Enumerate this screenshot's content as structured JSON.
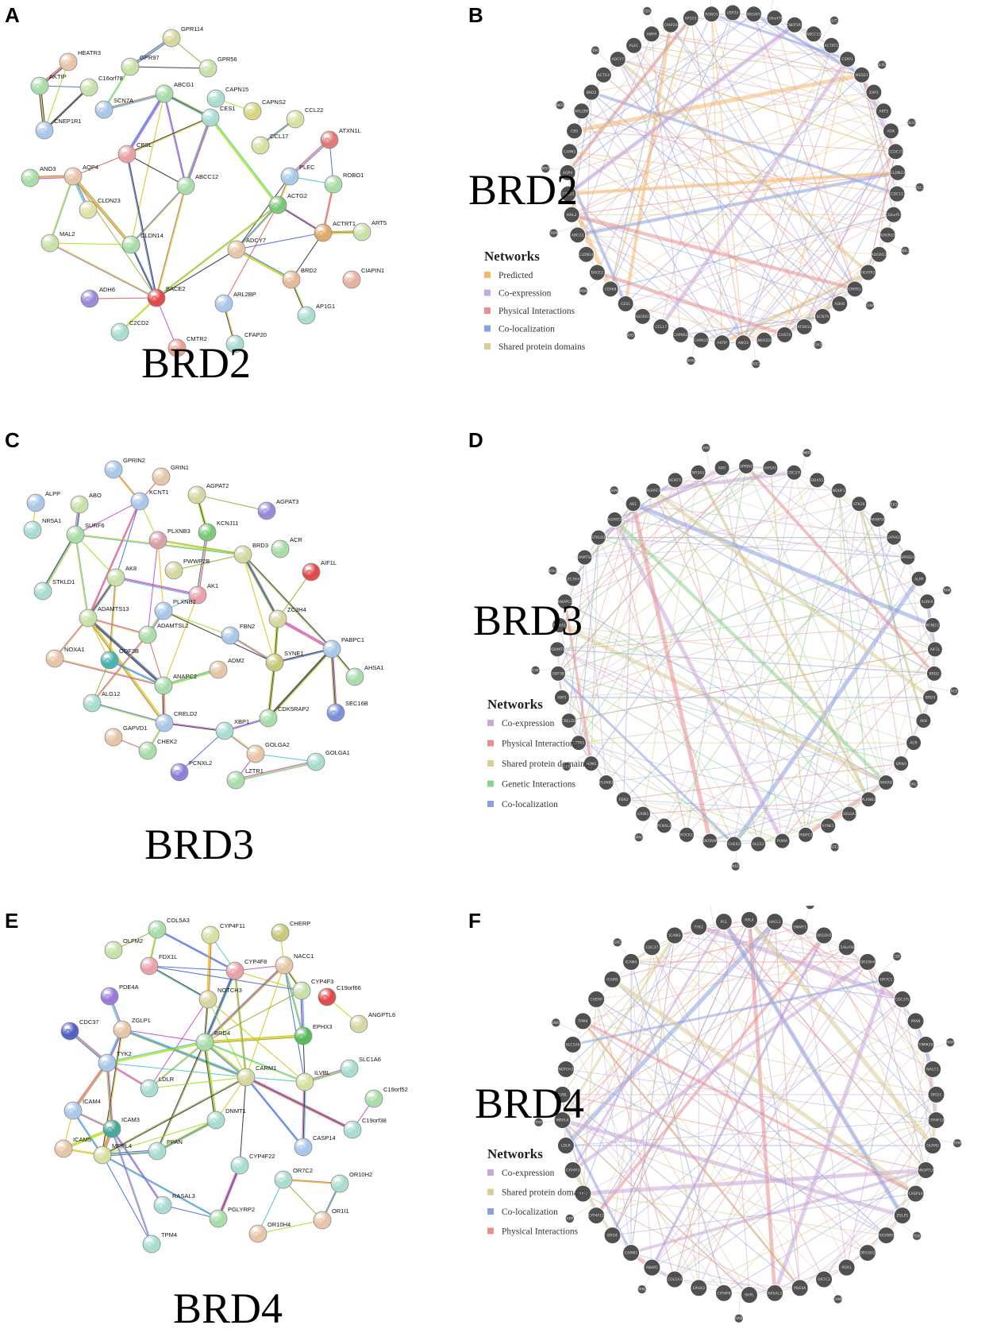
{
  "panels": [
    {
      "id": "A",
      "label": "A",
      "kind": "string",
      "title": "BRD2",
      "nodes": [
        {
          "name": "GPR114",
          "c": "#d6d6a0"
        },
        {
          "name": "HEATR3",
          "c": "#e6c4a6"
        },
        {
          "name": "GPR97",
          "c": "#c8e0a8"
        },
        {
          "name": "GPR56",
          "c": "#c8e0a8"
        },
        {
          "name": "AKTIP",
          "c": "#a8dca8"
        },
        {
          "name": "C16orf78",
          "c": "#c8e0a8"
        },
        {
          "name": "SCN7A",
          "c": "#a9c7e8"
        },
        {
          "name": "ABCG1",
          "c": "#a8dca8"
        },
        {
          "name": "CNEP1R1",
          "c": "#a9c7e8"
        },
        {
          "name": "CAPN15",
          "c": "#a8dcd0"
        },
        {
          "name": "CAPNS2",
          "c": "#d6d680"
        },
        {
          "name": "CCL22",
          "c": "#d6e0a0"
        },
        {
          "name": "CCL17",
          "c": "#d6e0a0"
        },
        {
          "name": "CBSL",
          "c": "#e8a0a0"
        },
        {
          "name": "CES1",
          "c": "#a8dcd0"
        },
        {
          "name": "ATXN1L",
          "c": "#e07878"
        },
        {
          "name": "ANO3",
          "c": "#a8dca8"
        },
        {
          "name": "AQP4",
          "c": "#e6c4a6"
        },
        {
          "name": "PLEC",
          "c": "#a9c7e8"
        },
        {
          "name": "ROBO1",
          "c": "#a8dca8"
        },
        {
          "name": "CLDN23",
          "c": "#e0e0a8"
        },
        {
          "name": "ABCC12",
          "c": "#a8dca8"
        },
        {
          "name": "ACTG2",
          "c": "#78c878"
        },
        {
          "name": "CLDN14",
          "c": "#a8dca8"
        },
        {
          "name": "MAL2",
          "c": "#c8e0a8"
        },
        {
          "name": "ACTRT1",
          "c": "#e0a868"
        },
        {
          "name": "ART5",
          "c": "#c8e0a8"
        },
        {
          "name": "ADCY7",
          "c": "#e6c4a6"
        },
        {
          "name": "CIAPIN1",
          "c": "#e8b0a0"
        },
        {
          "name": "BRD2",
          "c": "#e6b898"
        },
        {
          "name": "ARL2BP",
          "c": "#a9c7e8"
        },
        {
          "name": "ADH6",
          "c": "#9a88d8"
        },
        {
          "name": "BACE2",
          "c": "#e04848"
        },
        {
          "name": "AP1G1",
          "c": "#a8dcd0"
        },
        {
          "name": "C2CD2",
          "c": "#a8dcd0"
        },
        {
          "name": "CFAP20",
          "c": "#a8dcd0"
        },
        {
          "name": "CMTR2",
          "c": "#e8a090"
        }
      ]
    },
    {
      "id": "B",
      "label": "B",
      "kind": "circle",
      "title": "BRD2",
      "legend_title": "Networks",
      "legend": [
        {
          "name": "Predicted",
          "c": "#f4b870"
        },
        {
          "name": "Co-expression",
          "c": "#c8a8d8"
        },
        {
          "name": "Physical Interactions",
          "c": "#e89090"
        },
        {
          "name": "Co-localization",
          "c": "#8aa0e0"
        },
        {
          "name": "Shared protein domains",
          "c": "#d8cc98"
        }
      ],
      "nodes": [
        "USP33",
        "SRGAP1",
        "C16orf78",
        "CNEP1R1",
        "ABCC12",
        "ACTRT1",
        "CSPP1",
        "MED21",
        "ZAP1",
        "ART5",
        "AGK",
        "CCDC71",
        "CLDN23",
        "CCDC113",
        "C16orf57",
        "ADGRG5",
        "ADGRG3",
        "HEATR3",
        "CMTR2",
        "ADH6",
        "SCN7A",
        "ATXN1L",
        "CHST4",
        "ANKRD20",
        "ANO3",
        "AKTIP",
        "CAPN15",
        "CAPNS2",
        "CCL17",
        "ADGRG1",
        "CES1",
        "CEP68",
        "BACE2",
        "CLDN14",
        "ABCG1",
        "MAL2",
        "CCL22",
        "AQP4",
        "CAPN1",
        "CBS",
        "ARL2BP",
        "BRD2",
        "ACTG2",
        "ADCY7",
        "PLEC",
        "AMFR",
        "CFAP20",
        "AP1G1",
        "ROBO1"
      ],
      "satellites": [
        "DDC7L",
        "SLIT3",
        "GLIS3",
        "DLG5",
        "DLL3",
        "NBL1",
        "FLNA",
        "DDX21",
        "DDC2",
        "GRIN2",
        "NUDT",
        "MDK",
        "TRIP6",
        "MSF",
        "ANKRD",
        "PDK1",
        "CDL",
        "COL4"
      ]
    },
    {
      "id": "C",
      "label": "C",
      "kind": "string",
      "title": "BRD3",
      "nodes": [
        {
          "name": "GPRIN2",
          "c": "#a9c7e8"
        },
        {
          "name": "GRIN1",
          "c": "#e6c4a6"
        },
        {
          "name": "AGPAT2",
          "c": "#d6d6a0"
        },
        {
          "name": "ALPP",
          "c": "#a9c7e8"
        },
        {
          "name": "ABO",
          "c": "#c8e0a8"
        },
        {
          "name": "KCNT1",
          "c": "#a9c7e8"
        },
        {
          "name": "AGPAT3",
          "c": "#9a88d8"
        },
        {
          "name": "NR5A1",
          "c": "#a8dcd0"
        },
        {
          "name": "SURF6",
          "c": "#a8dca8"
        },
        {
          "name": "PLXNB3",
          "c": "#d8a0a8"
        },
        {
          "name": "KCNJ11",
          "c": "#78c878"
        },
        {
          "name": "BRD3",
          "c": "#d6d6a0"
        },
        {
          "name": "ACR",
          "c": "#a8dca8"
        },
        {
          "name": "PWWP2B",
          "c": "#d6d6a0"
        },
        {
          "name": "AIF1L",
          "c": "#e04848"
        },
        {
          "name": "STKLD1",
          "c": "#a8dcd0"
        },
        {
          "name": "AK8",
          "c": "#c8e0a8"
        },
        {
          "name": "AK1",
          "c": "#e8a0a8"
        },
        {
          "name": "PLXNB2",
          "c": "#a9c7e8"
        },
        {
          "name": "ADAMTS13",
          "c": "#c8e0a8"
        },
        {
          "name": "ZC3H4",
          "c": "#d6d6a0"
        },
        {
          "name": "ADAMTSL2",
          "c": "#a8dca8"
        },
        {
          "name": "FBN2",
          "c": "#a9c7e8"
        },
        {
          "name": "PABPC1",
          "c": "#a9c7e8"
        },
        {
          "name": "NOXA1",
          "c": "#e6c4a6"
        },
        {
          "name": "ODF3B",
          "c": "#48b0b0"
        },
        {
          "name": "ADM2",
          "c": "#e6c4a6"
        },
        {
          "name": "SYNE1",
          "c": "#c8c878"
        },
        {
          "name": "ANAPC2",
          "c": "#a8dca8"
        },
        {
          "name": "AHSA1",
          "c": "#a8dca8"
        },
        {
          "name": "ALG12",
          "c": "#a8dcd0"
        },
        {
          "name": "CRELD2",
          "c": "#a9c7e8"
        },
        {
          "name": "CDK5RAP2",
          "c": "#a8dca8"
        },
        {
          "name": "SEC16B",
          "c": "#7890d8"
        },
        {
          "name": "XBP1",
          "c": "#a8dcd0"
        },
        {
          "name": "GAPVD1",
          "c": "#e6c4a6"
        },
        {
          "name": "CHEK2",
          "c": "#a8dca8"
        },
        {
          "name": "GOLGA2",
          "c": "#e6c4a6"
        },
        {
          "name": "GOLGA1",
          "c": "#a8dcd0"
        },
        {
          "name": "PCNXL2",
          "c": "#8880d8"
        },
        {
          "name": "LZTR1",
          "c": "#a8dca8"
        }
      ]
    },
    {
      "id": "D",
      "label": "D",
      "kind": "circle",
      "title": "BRD3",
      "legend_title": "Networks",
      "legend": [
        {
          "name": "Co-expression",
          "c": "#c8a8d8"
        },
        {
          "name": "Physical Interactions",
          "c": "#e89090"
        },
        {
          "name": "Shared protein domains",
          "c": "#d8cc98"
        },
        {
          "name": "Genetic Interactions",
          "c": "#90d090"
        },
        {
          "name": "Co-localization",
          "c": "#8aa0e0"
        }
      ],
      "nodes": [
        "GPRIN2",
        "AHSA1",
        "CDC37L",
        "DDX55",
        "NDUF1",
        "STK26",
        "PWWP2B",
        "GAPVD1",
        "SPRED1",
        "ALPP",
        "SURF6",
        "KCNJ11",
        "AIF1L",
        "BRD2",
        "BRD3",
        "AK8",
        "ACR",
        "SPIN3",
        "ANKRD",
        "PLXNB2",
        "GOLGA2",
        "SYNE1",
        "PABPC1",
        "PUMA",
        "ALG12",
        "CHEK2",
        "CDK5RAP2",
        "ROCK1",
        "PCNXL2",
        "GRIN1",
        "FBN2",
        "PLXNB3",
        "ADM2",
        "LZTR1",
        "CRELD2",
        "XBP1",
        "ODF3B",
        "ADAMTS",
        "NOXA1",
        "ANAPC2",
        "ZC3H4",
        "ADAMTSL2",
        "STKLD1",
        "AGPAT2",
        "AK1",
        "AGPAT3",
        "KCNT1",
        "NR5A1",
        "ABO"
      ],
      "satellites": [
        "ANKRD",
        "PEX13",
        "TRIM3",
        "ACE",
        "GAL3",
        "ATF2",
        "MED",
        "SPAG",
        "CTR",
        "PCMT",
        "NOLC",
        "GRAP",
        "LRRC"
      ]
    },
    {
      "id": "E",
      "label": "E",
      "kind": "string",
      "title": "BRD4",
      "nodes": [
        {
          "name": "COL5A3",
          "c": "#a8dca8"
        },
        {
          "name": "CHERP",
          "c": "#c8c878"
        },
        {
          "name": "CYP4F11",
          "c": "#d6e0a0"
        },
        {
          "name": "OLFM2",
          "c": "#c8e0a8"
        },
        {
          "name": "FDX1L",
          "c": "#e8a0a8"
        },
        {
          "name": "CYP4F8",
          "c": "#e8a0a8"
        },
        {
          "name": "NACC1",
          "c": "#e6c4a6"
        },
        {
          "name": "CYP4F3",
          "c": "#c8e0a8"
        },
        {
          "name": "PDE4A",
          "c": "#9a78d8"
        },
        {
          "name": "NOTCH3",
          "c": "#d6d6a0"
        },
        {
          "name": "C19orf66",
          "c": "#e04848"
        },
        {
          "name": "ANGPTL6",
          "c": "#d6d6a0"
        },
        {
          "name": "CDC37",
          "c": "#5060c0"
        },
        {
          "name": "ZGLP1",
          "c": "#e6c4a6"
        },
        {
          "name": "EPHX3",
          "c": "#58b858"
        },
        {
          "name": "BRD4",
          "c": "#a8dca8"
        },
        {
          "name": "SLC1A6",
          "c": "#a8dcd0"
        },
        {
          "name": "TYK2",
          "c": "#a9c7e8"
        },
        {
          "name": "CARM1",
          "c": "#d6d6a0"
        },
        {
          "name": "ILVBL",
          "c": "#d6e0a0"
        },
        {
          "name": "LDLR",
          "c": "#a8dcd0"
        },
        {
          "name": "C19orf52",
          "c": "#a8dca8"
        },
        {
          "name": "ICAM4",
          "c": "#a9c7e8"
        },
        {
          "name": "DNMT1",
          "c": "#a8dcd0"
        },
        {
          "name": "ICAM3",
          "c": "#48a898"
        },
        {
          "name": "C19orf38",
          "c": "#a8dcd0"
        },
        {
          "name": "ICAM5",
          "c": "#e6c4a6"
        },
        {
          "name": "PPAN",
          "c": "#a8dcd0"
        },
        {
          "name": "CASP14",
          "c": "#a9c7e8"
        },
        {
          "name": "MRPL4",
          "c": "#d6e0a0"
        },
        {
          "name": "CYP4F22",
          "c": "#a8dcd0"
        },
        {
          "name": "OR7C2",
          "c": "#a8dcd0"
        },
        {
          "name": "OR10H2",
          "c": "#a8dcd0"
        },
        {
          "name": "RASAL3",
          "c": "#a8dcd0"
        },
        {
          "name": "PGLYRP2",
          "c": "#a8dca8"
        },
        {
          "name": "OR1I1",
          "c": "#e6c4a6"
        },
        {
          "name": "OR10H4",
          "c": "#e6c4a6"
        },
        {
          "name": "TPM4",
          "c": "#a8dcd0"
        }
      ]
    },
    {
      "id": "F",
      "label": "F",
      "kind": "circle",
      "title": "BRD4",
      "legend_title": "Networks",
      "legend": [
        {
          "name": "Co-expression",
          "c": "#c8a8d8"
        },
        {
          "name": "Shared protein domains",
          "c": "#d8cc98"
        },
        {
          "name": "Co-localization",
          "c": "#8aa0e0"
        },
        {
          "name": "Physical Interactions",
          "c": "#e89090"
        }
      ],
      "nodes": [
        "RPL4",
        "HACL1",
        "DNMT1",
        "OR10H5",
        "C19orf38",
        "OR10H4",
        "OR7C1",
        "CDC37L",
        "PPAN",
        "TIMM29",
        "NACC1",
        "OR1I1",
        "CYP4F22",
        "OLFM2",
        "ANGPTL6",
        "CASP14",
        "ZGLP1",
        "POLYBRG",
        "OR10H2",
        "PDX1",
        "OR7C2",
        "PDE4A",
        "RASAL3",
        "SHPL",
        "CYP4F8",
        "EPHX3",
        "COL5A3",
        "ANAPC",
        "CARM1",
        "BRD4",
        "CYP4F11",
        "YIPF2",
        "CYP4F3",
        "LDLR",
        "MRPL4",
        "ILVBL",
        "NOTCH3",
        "SLC1A6",
        "TPM4",
        "CHERP",
        "ICAM5",
        "ICAM4",
        "CDC37",
        "ICAM3",
        "TYK2",
        "PCL"
      ],
      "satellites": [
        "ZNF",
        "CDC",
        "MAP",
        "TPM",
        "FDX",
        "CAMK",
        "RAB",
        "PPRC",
        "APP",
        "TRF",
        "GNAS",
        "OTC",
        "PIN1"
      ]
    }
  ]
}
